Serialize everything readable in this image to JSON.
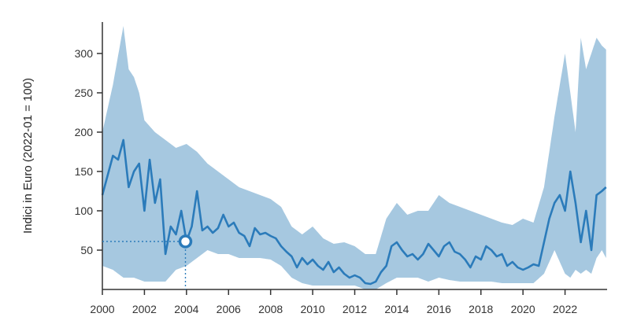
{
  "chart_data": {
    "type": "area",
    "title": "",
    "xlabel": "",
    "ylabel": "Indici in Euro (2022-01 = 100)",
    "xlim": [
      2000,
      2024
    ],
    "ylim": [
      0,
      340
    ],
    "x_ticks": [
      2000,
      2002,
      2004,
      2006,
      2008,
      2010,
      2012,
      2014,
      2016,
      2018,
      2020,
      2022
    ],
    "x_tick_labels": [
      "2000",
      "2002",
      "2004",
      "2006",
      "2008",
      "2010",
      "2012",
      "2014",
      "2016",
      "2018",
      "2020",
      "2022"
    ],
    "y_ticks": [
      50,
      100,
      150,
      200,
      250,
      300
    ],
    "y_tick_labels": [
      "50",
      "100",
      "150",
      "200",
      "250",
      "300"
    ],
    "grid": false,
    "colors": {
      "line": "#2b7bba",
      "band": "#a6c8e0",
      "axis": "#333333",
      "highlight": "#2b7bba"
    },
    "highlight_point": {
      "x": 2003.95,
      "y": 61
    },
    "series": [
      {
        "role": "median",
        "x": [
          2000.0,
          2000.25,
          2000.5,
          2000.75,
          2001.0,
          2001.25,
          2001.5,
          2001.75,
          2002.0,
          2002.25,
          2002.5,
          2002.75,
          2003.0,
          2003.25,
          2003.5,
          2003.75,
          2004.0,
          2004.25,
          2004.5,
          2004.75,
          2005.0,
          2005.25,
          2005.5,
          2005.75,
          2006.0,
          2006.25,
          2006.5,
          2006.75,
          2007.0,
          2007.25,
          2007.5,
          2007.75,
          2008.0,
          2008.25,
          2008.5,
          2008.75,
          2009.0,
          2009.25,
          2009.5,
          2009.75,
          2010.0,
          2010.25,
          2010.5,
          2010.75,
          2011.0,
          2011.25,
          2011.5,
          2011.75,
          2012.0,
          2012.25,
          2012.5,
          2012.75,
          2013.0,
          2013.25,
          2013.5,
          2013.75,
          2014.0,
          2014.25,
          2014.5,
          2014.75,
          2015.0,
          2015.25,
          2015.5,
          2015.75,
          2016.0,
          2016.25,
          2016.5,
          2016.75,
          2017.0,
          2017.25,
          2017.5,
          2017.75,
          2018.0,
          2018.25,
          2018.5,
          2018.75,
          2019.0,
          2019.25,
          2019.5,
          2019.75,
          2020.0,
          2020.25,
          2020.5,
          2020.75,
          2021.0,
          2021.25,
          2021.5,
          2021.75,
          2022.0,
          2022.25,
          2022.5,
          2022.75,
          2023.0,
          2023.25,
          2023.5,
          2023.75,
          2023.95
        ],
        "y": [
          120,
          145,
          170,
          165,
          190,
          130,
          150,
          160,
          100,
          165,
          110,
          140,
          45,
          80,
          70,
          100,
          61,
          80,
          125,
          75,
          80,
          72,
          78,
          95,
          80,
          85,
          72,
          68,
          55,
          78,
          70,
          72,
          68,
          65,
          55,
          48,
          42,
          28,
          40,
          32,
          38,
          30,
          25,
          35,
          22,
          28,
          20,
          15,
          18,
          15,
          8,
          7,
          10,
          22,
          30,
          55,
          60,
          50,
          42,
          45,
          38,
          45,
          58,
          50,
          42,
          55,
          60,
          48,
          45,
          38,
          28,
          42,
          38,
          55,
          50,
          42,
          45,
          30,
          35,
          28,
          25,
          28,
          32,
          30,
          60,
          90,
          110,
          120,
          100,
          150,
          110,
          60,
          100,
          50,
          120,
          125,
          130
        ]
      },
      {
        "role": "band_upper",
        "x": [
          2000.0,
          2000.5,
          2001.0,
          2001.25,
          2001.5,
          2001.75,
          2002.0,
          2002.5,
          2003.0,
          2003.5,
          2004.0,
          2004.5,
          2005.0,
          2005.5,
          2006.0,
          2006.5,
          2007.0,
          2007.5,
          2008.0,
          2008.5,
          2009.0,
          2009.5,
          2010.0,
          2010.5,
          2011.0,
          2011.5,
          2012.0,
          2012.5,
          2013.0,
          2013.5,
          2014.0,
          2014.5,
          2015.0,
          2015.5,
          2016.0,
          2016.5,
          2017.0,
          2017.5,
          2018.0,
          2018.5,
          2019.0,
          2019.5,
          2020.0,
          2020.5,
          2021.0,
          2021.5,
          2022.0,
          2022.25,
          2022.5,
          2022.75,
          2023.0,
          2023.25,
          2023.5,
          2023.75,
          2023.95
        ],
        "y": [
          200,
          260,
          335,
          280,
          270,
          250,
          215,
          200,
          190,
          180,
          185,
          175,
          160,
          150,
          140,
          130,
          125,
          120,
          115,
          105,
          80,
          70,
          80,
          65,
          58,
          60,
          55,
          45,
          45,
          90,
          110,
          95,
          100,
          100,
          120,
          110,
          105,
          100,
          95,
          90,
          85,
          82,
          90,
          85,
          130,
          220,
          300,
          250,
          200,
          320,
          280,
          300,
          320,
          310,
          305
        ]
      },
      {
        "role": "band_lower",
        "x": [
          2000.0,
          2000.5,
          2001.0,
          2001.5,
          2002.0,
          2002.5,
          2003.0,
          2003.5,
          2004.0,
          2004.5,
          2005.0,
          2005.5,
          2006.0,
          2006.5,
          2007.0,
          2007.5,
          2008.0,
          2008.5,
          2009.0,
          2009.5,
          2010.0,
          2010.5,
          2011.0,
          2011.5,
          2012.0,
          2012.5,
          2013.0,
          2013.5,
          2014.0,
          2014.5,
          2015.0,
          2015.5,
          2016.0,
          2016.5,
          2017.0,
          2017.5,
          2018.0,
          2018.5,
          2019.0,
          2019.5,
          2020.0,
          2020.5,
          2021.0,
          2021.5,
          2022.0,
          2022.25,
          2022.5,
          2022.75,
          2023.0,
          2023.25,
          2023.5,
          2023.75,
          2023.95
        ],
        "y": [
          30,
          25,
          15,
          15,
          10,
          10,
          10,
          25,
          30,
          40,
          50,
          45,
          45,
          40,
          40,
          40,
          38,
          30,
          15,
          8,
          5,
          5,
          5,
          5,
          5,
          0,
          0,
          8,
          15,
          15,
          15,
          10,
          15,
          12,
          10,
          10,
          10,
          10,
          8,
          8,
          8,
          8,
          20,
          50,
          20,
          15,
          25,
          20,
          25,
          20,
          40,
          50,
          40
        ]
      }
    ]
  }
}
